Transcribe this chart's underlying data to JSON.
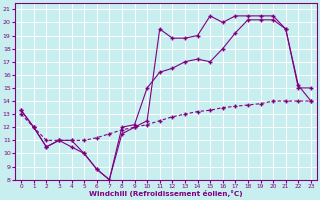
{
  "xlabel": "Windchill (Refroidissement éolien,°C)",
  "background_color": "#c8eef0",
  "grid_color": "#ffffff",
  "line_color": "#800080",
  "xlim": [
    -0.5,
    23.5
  ],
  "ylim": [
    8,
    21.5
  ],
  "xticks": [
    0,
    1,
    2,
    3,
    4,
    5,
    6,
    7,
    8,
    9,
    10,
    11,
    12,
    13,
    14,
    15,
    16,
    17,
    18,
    19,
    20,
    21,
    22,
    23
  ],
  "yticks": [
    8,
    9,
    10,
    11,
    12,
    13,
    14,
    15,
    16,
    17,
    18,
    19,
    20,
    21
  ],
  "line1_x": [
    0,
    1,
    2,
    3,
    4,
    5,
    6,
    7,
    8,
    9,
    10,
    11,
    12,
    13,
    14,
    15,
    16,
    17,
    18,
    19,
    20,
    21,
    22,
    23
  ],
  "line1_y": [
    13.3,
    12.0,
    10.5,
    11.0,
    11.0,
    10.0,
    8.8,
    8.0,
    12.0,
    12.2,
    15.0,
    16.2,
    16.5,
    17.0,
    17.2,
    17.0,
    18.0,
    19.2,
    20.2,
    20.2,
    20.2,
    19.5,
    15.2,
    14.0
  ],
  "line2_x": [
    0,
    1,
    2,
    3,
    4,
    5,
    6,
    7,
    8,
    9,
    10,
    11,
    12,
    13,
    14,
    15,
    16,
    17,
    18,
    19,
    20,
    21,
    22,
    23
  ],
  "line2_y": [
    13.3,
    12.0,
    10.5,
    11.0,
    10.5,
    10.0,
    8.8,
    8.0,
    11.5,
    12.0,
    12.5,
    19.5,
    18.8,
    18.8,
    19.0,
    20.5,
    20.0,
    20.5,
    20.5,
    20.5,
    20.5,
    19.5,
    15.0,
    15.0
  ],
  "line3_x": [
    0,
    1,
    2,
    3,
    4,
    5,
    6,
    7,
    8,
    9,
    10,
    11,
    12,
    13,
    14,
    15,
    16,
    17,
    18,
    19,
    20,
    21,
    22,
    23
  ],
  "line3_y": [
    13.0,
    12.0,
    11.0,
    11.0,
    11.0,
    11.0,
    11.2,
    11.5,
    11.8,
    12.0,
    12.2,
    12.5,
    12.8,
    13.0,
    13.2,
    13.3,
    13.5,
    13.6,
    13.7,
    13.8,
    14.0,
    14.0,
    14.0,
    14.0
  ],
  "marker": "+",
  "markersize": 3,
  "linewidth": 0.8
}
